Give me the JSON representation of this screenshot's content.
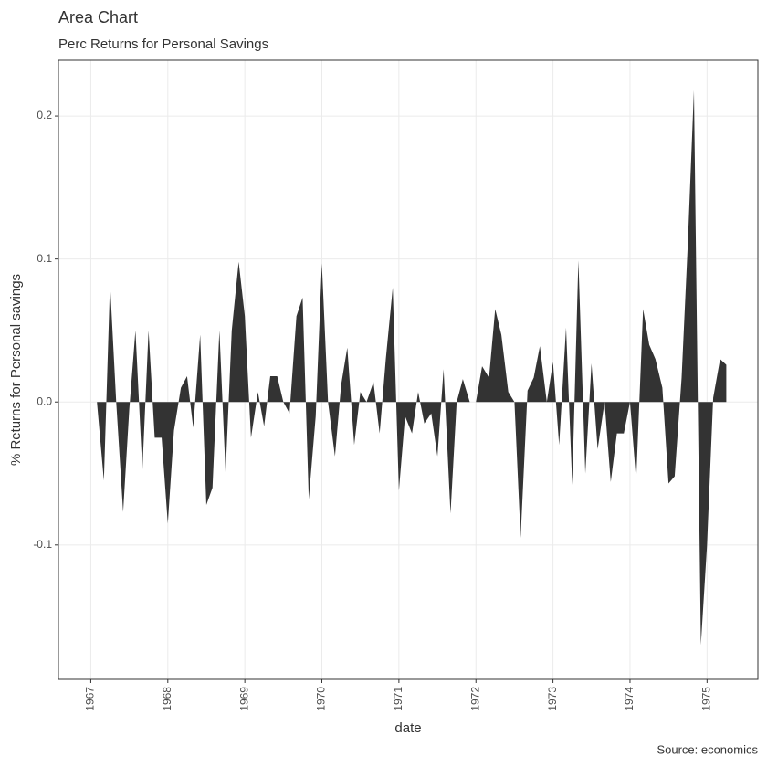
{
  "chart_data": {
    "type": "area",
    "title": "Area Chart",
    "subtitle": "Perc Returns for Personal Savings",
    "x_label": "date",
    "y_label": "% Returns for Personal savings",
    "caption": "Source: economics",
    "color": "#333333",
    "grid": true,
    "xlim": [
      1966.58,
      1975.66
    ],
    "ylim": [
      -0.194,
      0.239
    ],
    "xticks": [
      1967,
      1968,
      1969,
      1970,
      1971,
      1972,
      1973,
      1974,
      1975
    ],
    "yticks": [
      -0.1,
      {
        "value": 0,
        "label": "0.0"
      },
      0.1,
      0.2
    ],
    "x": [
      1967.08,
      1967.17,
      1967.25,
      1967.33,
      1967.42,
      1967.5,
      1967.58,
      1967.67,
      1967.75,
      1967.83,
      1967.92,
      1968,
      1968.08,
      1968.17,
      1968.25,
      1968.33,
      1968.42,
      1968.5,
      1968.58,
      1968.67,
      1968.75,
      1968.83,
      1968.92,
      1969,
      1969.08,
      1969.17,
      1969.25,
      1969.33,
      1969.42,
      1969.5,
      1969.58,
      1969.67,
      1969.75,
      1969.83,
      1969.92,
      1970,
      1970.08,
      1970.17,
      1970.25,
      1970.33,
      1970.42,
      1970.5,
      1970.58,
      1970.67,
      1970.75,
      1970.83,
      1970.92,
      1971,
      1971.08,
      1971.17,
      1971.25,
      1971.33,
      1971.42,
      1971.5,
      1971.58,
      1971.67,
      1971.75,
      1971.83,
      1971.92,
      1972,
      1972.08,
      1972.17,
      1972.25,
      1972.33,
      1972.42,
      1972.5,
      1972.58,
      1972.67,
      1972.75,
      1972.83,
      1972.92,
      1973,
      1973.08,
      1973.17,
      1973.25,
      1973.33,
      1973.42,
      1973.5,
      1973.58,
      1973.67,
      1973.75,
      1973.83,
      1973.92,
      1974,
      1974.08,
      1974.17,
      1974.25,
      1974.33,
      1974.42,
      1974.5,
      1974.58,
      1974.67,
      1974.75,
      1974.83,
      1974.92,
      1975,
      1975.08,
      1975.17,
      1975.25
    ],
    "values": [
      0,
      -0.055,
      0.083,
      0,
      -0.077,
      -0.005,
      0.05,
      -0.048,
      0.05,
      -0.025,
      -0.025,
      -0.085,
      -0.02,
      0.01,
      0.018,
      -0.018,
      0.047,
      -0.072,
      -0.06,
      0.05,
      -0.05,
      0.05,
      0.098,
      0.06,
      -0.025,
      0.007,
      -0.017,
      0.018,
      0.018,
      0,
      -0.008,
      0.06,
      0.073,
      -0.068,
      -0.01,
      0.097,
      0,
      -0.038,
      0.012,
      0.038,
      -0.03,
      0.007,
      0,
      0.014,
      -0.022,
      0.03,
      0.08,
      -0.062,
      -0.01,
      -0.022,
      0.007,
      -0.015,
      -0.008,
      -0.038,
      0.023,
      -0.078,
      0,
      0.016,
      0,
      0,
      0.025,
      0.017,
      0.065,
      0.047,
      0.007,
      0,
      -0.095,
      0.008,
      0.017,
      0.039,
      0,
      0.028,
      -0.03,
      0.052,
      -0.058,
      0.099,
      -0.05,
      0.027,
      -0.033,
      0,
      -0.056,
      -0.022,
      -0.022,
      0,
      -0.055,
      0.065,
      0.04,
      0.03,
      0.01,
      -0.057,
      -0.052,
      0.017,
      0.11,
      0.218,
      -0.17,
      -0.1,
      0.003,
      0.03,
      0.026
    ]
  }
}
